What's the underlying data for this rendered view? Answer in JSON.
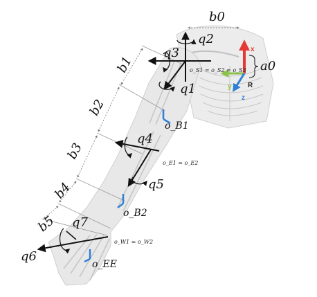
{
  "labels": {
    "b0": "b0",
    "b1": "b1",
    "b2": "b2",
    "b3": "b3",
    "b4": "b4",
    "b5": "b5",
    "a0": "a0",
    "q1": "q1",
    "q2": "q2",
    "q3": "q3",
    "q4": "q4",
    "q5": "q5",
    "q6": "q6",
    "q7": "q7",
    "shoulder_origins": "o_S1 = o_S2 = o_S3",
    "elbow_origins": "o_E1 = o_E2",
    "wrist_origins": "o_W1 = o_W2",
    "o_b1": "o_B1",
    "o_b2": "o_B2",
    "o_ee": "o_EE",
    "frame_x": "x",
    "frame_y": "y",
    "frame_z": "z",
    "frame_r": "R"
  },
  "colors": {
    "x_axis": "#e53935",
    "y_axis": "#8bc34a",
    "z_axis": "#2f7fd6",
    "marker": "#2f7fd6",
    "arm_fill": "#e6e6e6",
    "bone": "#bdbdbd"
  }
}
